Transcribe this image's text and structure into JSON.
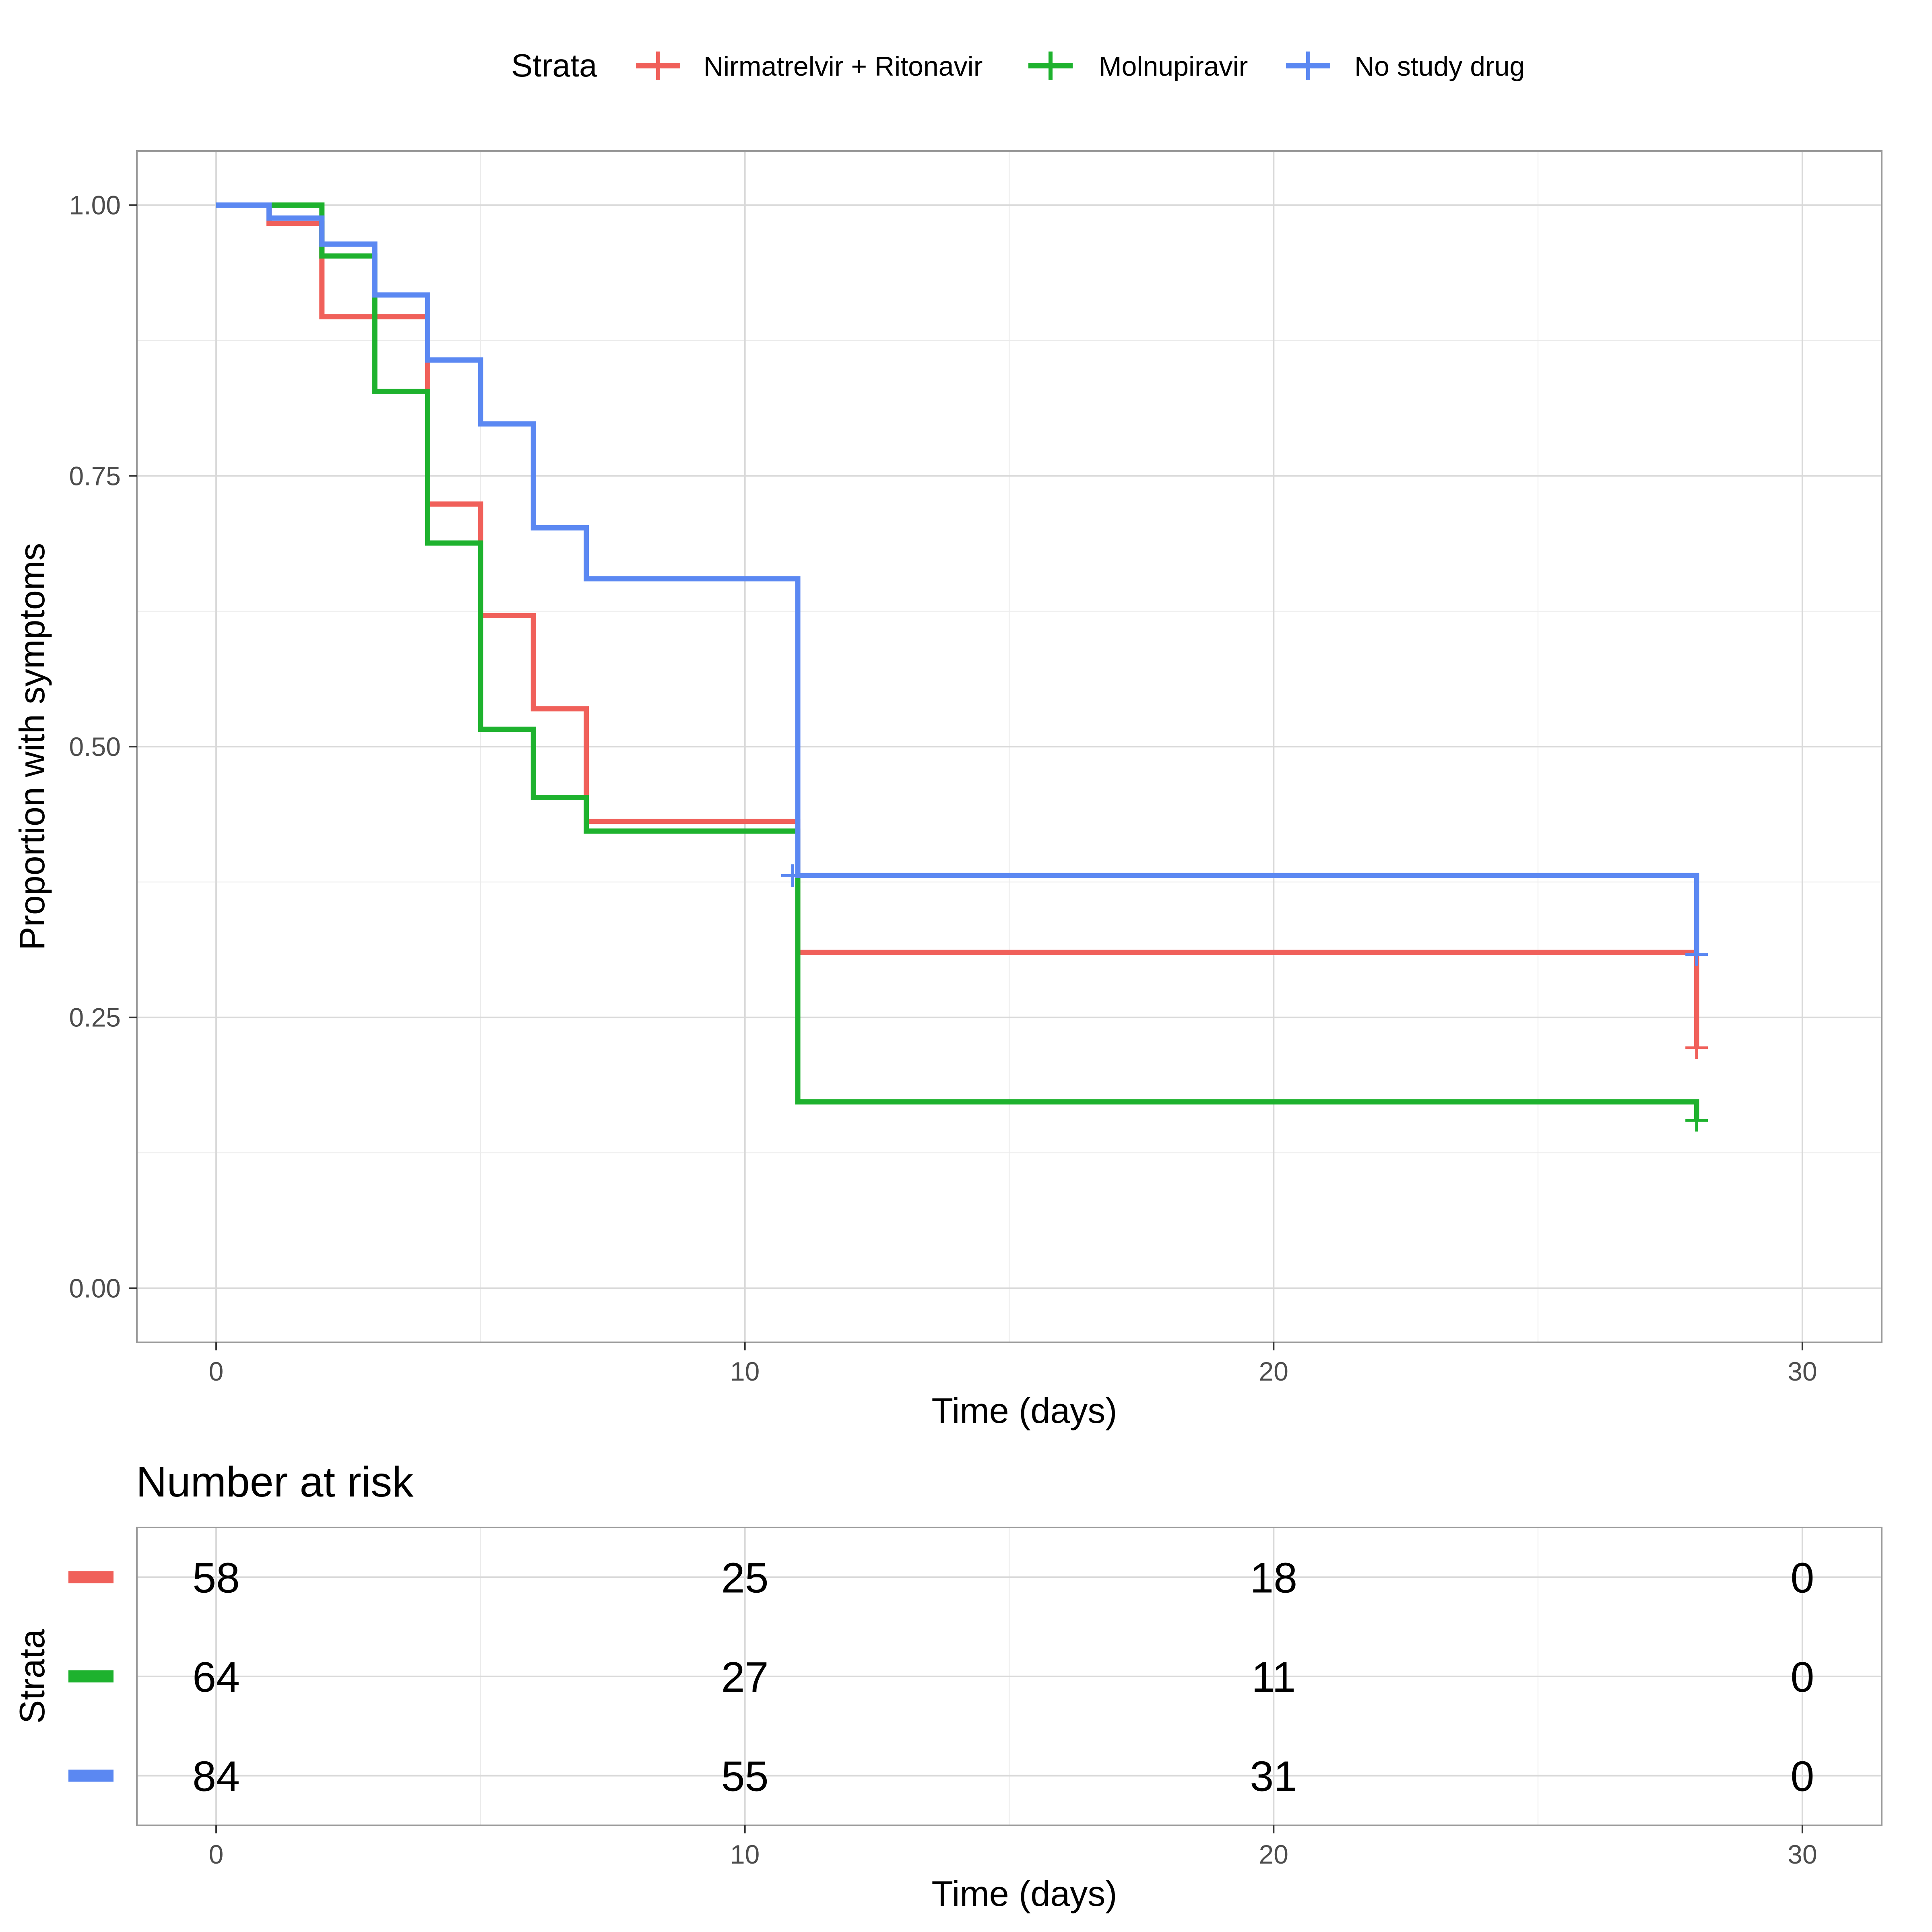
{
  "legend": {
    "title": "Strata",
    "items": [
      {
        "label": "Nirmatrelvir + Ritonavir",
        "color": "#F0605A"
      },
      {
        "label": "Molnupiravir",
        "color": "#1EB22E"
      },
      {
        "label": "No study drug",
        "color": "#5B88F2"
      }
    ]
  },
  "chart_data": {
    "type": "line",
    "step": true,
    "xlabel": "Time (days)",
    "ylabel": "Proportion with symptoms",
    "xlim": [
      -1.5,
      31.5
    ],
    "ylim": [
      -0.05,
      1.05
    ],
    "x_ticks": [
      0,
      10,
      20,
      30
    ],
    "y_ticks": [
      0,
      0.25,
      0.5,
      0.75,
      1.0
    ],
    "y_tick_labels": [
      "0.00",
      "0.25",
      "0.50",
      "0.75",
      "1.00"
    ],
    "grid": true,
    "legend_position": "top",
    "series": [
      {
        "name": "Nirmatrelvir + Ritonavir",
        "color": "#F0605A",
        "points": [
          [
            0,
            1.0
          ],
          [
            1,
            0.983
          ],
          [
            2,
            0.897
          ],
          [
            3,
            0.897
          ],
          [
            4,
            0.724
          ],
          [
            5,
            0.621
          ],
          [
            6,
            0.535
          ],
          [
            7,
            0.431
          ],
          [
            11,
            0.31
          ],
          [
            28,
            0.222
          ]
        ],
        "censor_marks": [
          [
            28,
            0.222
          ]
        ]
      },
      {
        "name": "Molnupiravir",
        "color": "#1EB22E",
        "points": [
          [
            0,
            1.0
          ],
          [
            2,
            0.953
          ],
          [
            3,
            0.828
          ],
          [
            4,
            0.688
          ],
          [
            5,
            0.516
          ],
          [
            6,
            0.453
          ],
          [
            7,
            0.422
          ],
          [
            11,
            0.172
          ],
          [
            28,
            0.155
          ]
        ],
        "censor_marks": [
          [
            28,
            0.155
          ]
        ]
      },
      {
        "name": "No study drug",
        "color": "#5B88F2",
        "points": [
          [
            0,
            1.0
          ],
          [
            1,
            0.988
          ],
          [
            2,
            0.964
          ],
          [
            3,
            0.917
          ],
          [
            4,
            0.857
          ],
          [
            5,
            0.798
          ],
          [
            6,
            0.702
          ],
          [
            7,
            0.655
          ],
          [
            11,
            0.381
          ],
          [
            28,
            0.308
          ]
        ],
        "censor_marks": [
          [
            10.9,
            0.381
          ],
          [
            28,
            0.308
          ]
        ]
      }
    ]
  },
  "risk_table": {
    "title": "Number at risk",
    "ylabel": "Strata",
    "xlabel": "Time (days)",
    "x_ticks": [
      0,
      10,
      20,
      30
    ],
    "rows": [
      {
        "color": "#F0605A",
        "counts": [
          "58",
          "25",
          "18",
          "0"
        ]
      },
      {
        "color": "#1EB22E",
        "counts": [
          "64",
          "27",
          "11",
          "0"
        ]
      },
      {
        "color": "#5B88F2",
        "counts": [
          "84",
          "55",
          "31",
          "0"
        ]
      }
    ]
  }
}
